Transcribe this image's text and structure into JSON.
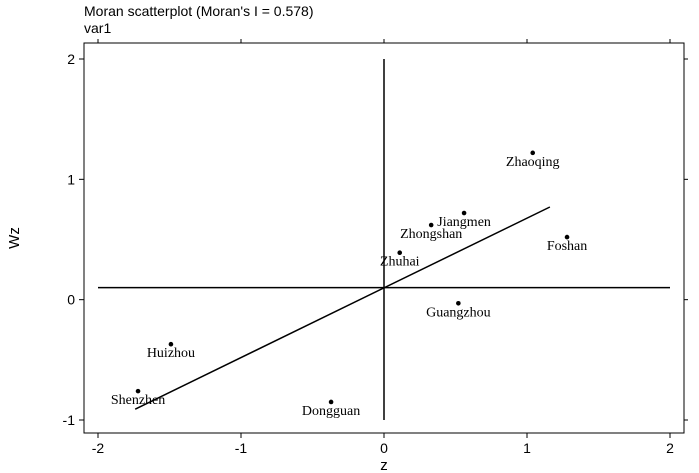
{
  "chart_data": {
    "type": "scatter",
    "title": "Moran scatterplot (Moran's I = 0.578)",
    "subtitle": "var1",
    "xlabel": "z",
    "ylabel": "Wz",
    "xlim": [
      -2.1,
      2.1
    ],
    "ylim": [
      -1.1,
      2.1
    ],
    "x_ticks": [
      -2,
      -1,
      0,
      1,
      2
    ],
    "y_ticks": [
      -1,
      0,
      1,
      2
    ],
    "points": [
      {
        "label": "Zhaoqing",
        "x": 1.04,
        "y": 1.22
      },
      {
        "label": "Jiangmen",
        "x": 0.56,
        "y": 0.72
      },
      {
        "label": "Zhongshan",
        "x": 0.33,
        "y": 0.62
      },
      {
        "label": "Foshan",
        "x": 1.28,
        "y": 0.52
      },
      {
        "label": "Zhuhai",
        "x": 0.11,
        "y": 0.39
      },
      {
        "label": "Guangzhou",
        "x": 0.52,
        "y": -0.03
      },
      {
        "label": "Huizhou",
        "x": -1.49,
        "y": -0.37
      },
      {
        "label": "Shenzhen",
        "x": -1.72,
        "y": -0.76
      },
      {
        "label": "Dongguan",
        "x": -0.37,
        "y": -0.85
      }
    ],
    "regression_line": {
      "x": [
        -1.74,
        1.16
      ],
      "y": [
        -0.91,
        0.77
      ]
    },
    "reference_lines": {
      "horizontal_y": 0.1,
      "vertical_x": 0.0,
      "x_range": [
        -2.0,
        2.0
      ],
      "y_range": [
        -1.0,
        2.0
      ]
    },
    "grid": false,
    "legend": "none"
  }
}
